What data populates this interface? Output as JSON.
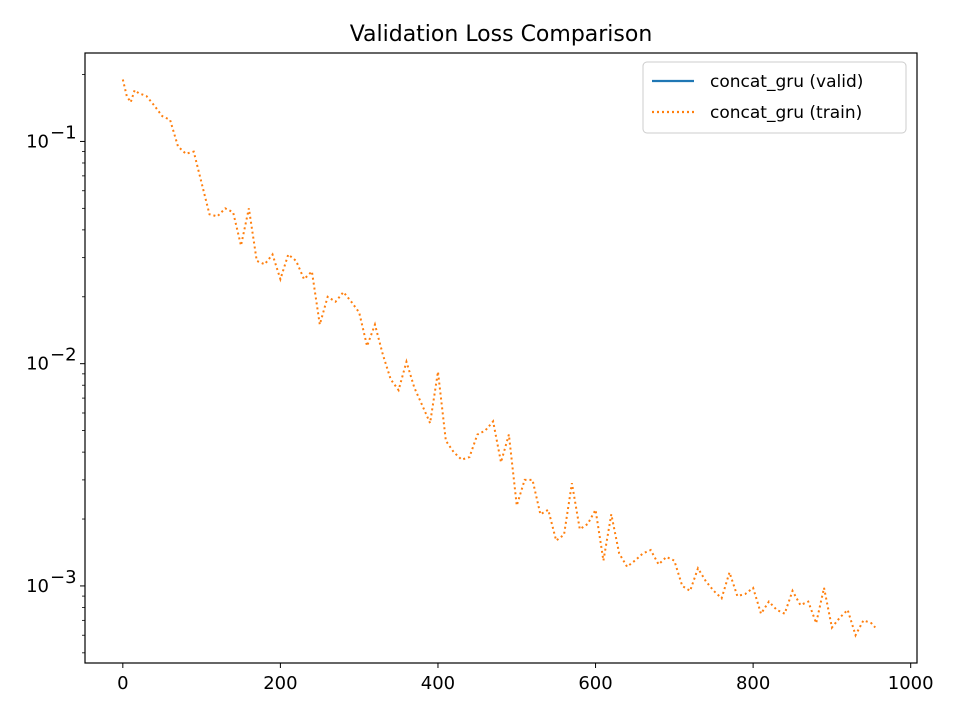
{
  "chart_data": {
    "type": "line",
    "title": "Validation Loss Comparison",
    "xlabel": "",
    "ylabel": "",
    "xlim": [
      -48,
      1008
    ],
    "ylim": [
      0.00045,
      0.25
    ],
    "yscale": "log",
    "grid": false,
    "legend_position": "top-right",
    "x_ticks": [
      0,
      200,
      400,
      600,
      800,
      1000
    ],
    "x_tick_labels": [
      "0",
      "200",
      "400",
      "600",
      "800",
      "1000"
    ],
    "y_major_ticks": [
      0.001,
      0.01,
      0.1
    ],
    "y_tick_labels": [
      {
        "base": "10",
        "exp": "−3"
      },
      {
        "base": "10",
        "exp": "−2"
      },
      {
        "base": "10",
        "exp": "−1"
      }
    ],
    "series": [
      {
        "name": "concat_gru (valid)",
        "color": "#1f77b4",
        "style": "solid",
        "x": [],
        "y": []
      },
      {
        "name": "concat_gru (train)",
        "color": "#ff7f0e",
        "style": "dotted",
        "x": [
          0,
          5,
          10,
          15,
          20,
          30,
          40,
          50,
          60,
          70,
          80,
          90,
          100,
          110,
          120,
          130,
          140,
          150,
          160,
          170,
          180,
          190,
          200,
          210,
          220,
          230,
          240,
          250,
          260,
          270,
          280,
          290,
          300,
          310,
          320,
          330,
          340,
          350,
          360,
          370,
          380,
          390,
          400,
          410,
          420,
          430,
          440,
          450,
          460,
          470,
          480,
          490,
          500,
          510,
          520,
          530,
          540,
          550,
          560,
          570,
          580,
          590,
          600,
          610,
          620,
          630,
          640,
          650,
          660,
          670,
          680,
          690,
          700,
          710,
          720,
          730,
          740,
          750,
          760,
          770,
          780,
          790,
          800,
          810,
          820,
          830,
          840,
          850,
          860,
          870,
          880,
          890,
          900,
          910,
          920,
          930,
          940,
          950,
          955
        ],
        "y": [
          0.19,
          0.16,
          0.15,
          0.17,
          0.165,
          0.16,
          0.145,
          0.13,
          0.125,
          0.095,
          0.088,
          0.09,
          0.065,
          0.047,
          0.046,
          0.05,
          0.048,
          0.034,
          0.05,
          0.029,
          0.028,
          0.031,
          0.024,
          0.031,
          0.029,
          0.024,
          0.026,
          0.015,
          0.02,
          0.019,
          0.021,
          0.019,
          0.017,
          0.012,
          0.015,
          0.011,
          0.0085,
          0.0076,
          0.0102,
          0.0078,
          0.0065,
          0.0054,
          0.0092,
          0.0045,
          0.004,
          0.0037,
          0.0038,
          0.0048,
          0.005,
          0.0055,
          0.0036,
          0.0048,
          0.0023,
          0.003,
          0.003,
          0.0021,
          0.0022,
          0.0016,
          0.0017,
          0.0029,
          0.0018,
          0.0019,
          0.0022,
          0.0013,
          0.0021,
          0.0014,
          0.00122,
          0.0013,
          0.0014,
          0.00145,
          0.00125,
          0.00135,
          0.0013,
          0.001,
          0.00095,
          0.0012,
          0.00105,
          0.00095,
          0.00088,
          0.00115,
          0.0009,
          0.00092,
          0.00098,
          0.00075,
          0.00085,
          0.00078,
          0.00075,
          0.00095,
          0.00082,
          0.00085,
          0.00068,
          0.00098,
          0.00065,
          0.00072,
          0.00078,
          0.0006,
          0.0007,
          0.00068,
          0.00065
        ]
      }
    ]
  }
}
